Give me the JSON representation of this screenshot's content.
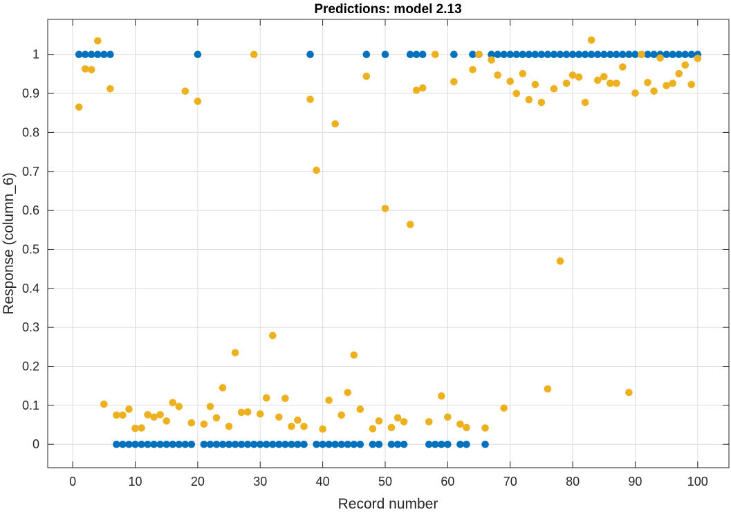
{
  "chart_data": {
    "type": "scatter",
    "title": "Predictions: model 2.13",
    "xlabel": "Record number",
    "ylabel": "Response (column_6)",
    "xlim": [
      -4,
      105
    ],
    "ylim": [
      -0.06,
      1.09
    ],
    "xticks": [
      0,
      10,
      20,
      30,
      40,
      50,
      60,
      70,
      80,
      90,
      100
    ],
    "yticks": [
      0,
      0.1,
      0.2,
      0.3,
      0.4,
      0.5,
      0.6,
      0.7,
      0.8,
      0.9,
      1
    ],
    "xtick_labels": [
      "0",
      "10",
      "20",
      "30",
      "40",
      "50",
      "60",
      "70",
      "80",
      "90",
      "100"
    ],
    "ytick_labels": [
      "0",
      "0.1",
      "0.2",
      "0.3",
      "0.4",
      "0.5",
      "0.6",
      "0.7",
      "0.8",
      "0.9",
      "1"
    ],
    "grid": true,
    "series": [
      {
        "color": "#0072BD",
        "x": [
          1,
          2,
          3,
          4,
          5,
          6,
          7,
          8,
          9,
          10,
          11,
          12,
          13,
          14,
          15,
          16,
          17,
          18,
          19,
          20,
          21,
          22,
          23,
          24,
          25,
          26,
          27,
          28,
          29,
          30,
          31,
          32,
          33,
          34,
          35,
          36,
          37,
          38,
          39,
          40,
          41,
          42,
          43,
          44,
          45,
          46,
          47,
          48,
          49,
          50,
          51,
          52,
          53,
          54,
          55,
          56,
          57,
          58,
          59,
          60,
          61,
          62,
          63,
          64,
          65,
          66,
          67,
          68,
          69,
          70,
          71,
          72,
          73,
          74,
          75,
          76,
          77,
          78,
          79,
          80,
          81,
          82,
          83,
          84,
          85,
          86,
          87,
          88,
          89,
          90,
          91,
          92,
          93,
          94,
          95,
          96,
          97,
          98,
          99,
          100
        ],
        "y": [
          1,
          1,
          1,
          1,
          1,
          1,
          0,
          0,
          0,
          0,
          0,
          0,
          0,
          0,
          0,
          0,
          0,
          0,
          0,
          1,
          0,
          0,
          0,
          0,
          0,
          0,
          0,
          0,
          0,
          0,
          0,
          0,
          0,
          0,
          0,
          0,
          0,
          1,
          0,
          0,
          0,
          0,
          0,
          0,
          0,
          0,
          1,
          0,
          0,
          1,
          0,
          0,
          0,
          1,
          1,
          1,
          0,
          0,
          0,
          0,
          1,
          0,
          0,
          1,
          1,
          0,
          1,
          1,
          1,
          1,
          1,
          1,
          1,
          1,
          1,
          1,
          1,
          1,
          1,
          1,
          1,
          1,
          1,
          1,
          1,
          1,
          1,
          1,
          1,
          1,
          1,
          1,
          1,
          1,
          1,
          1,
          1,
          1,
          1,
          1
        ]
      },
      {
        "color": "#EDB120",
        "x": [
          1,
          2,
          3,
          4,
          5,
          6,
          7,
          8,
          9,
          10,
          11,
          12,
          13,
          14,
          15,
          16,
          17,
          18,
          19,
          20,
          21,
          22,
          23,
          24,
          25,
          26,
          27,
          28,
          29,
          30,
          31,
          32,
          33,
          34,
          35,
          36,
          37,
          38,
          39,
          40,
          41,
          42,
          43,
          44,
          45,
          46,
          47,
          48,
          49,
          50,
          51,
          52,
          53,
          54,
          55,
          56,
          57,
          58,
          59,
          60,
          61,
          62,
          63,
          64,
          65,
          66,
          67,
          68,
          69,
          70,
          71,
          72,
          73,
          74,
          75,
          76,
          77,
          78,
          79,
          80,
          81,
          82,
          83,
          84,
          85,
          86,
          87,
          88,
          89,
          90,
          91,
          92,
          93,
          94,
          95,
          96,
          97,
          98,
          99,
          100
        ],
        "y": [
          0.865,
          0.963,
          0.961,
          1.035,
          0.103,
          0.912,
          0.075,
          0.075,
          0.09,
          0.041,
          0.042,
          0.076,
          0.07,
          0.076,
          0.06,
          0.107,
          0.097,
          0.906,
          0.055,
          0.88,
          0.052,
          0.097,
          0.068,
          0.145,
          0.046,
          0.235,
          0.082,
          0.083,
          1.0,
          0.078,
          0.119,
          0.279,
          0.07,
          0.118,
          0.046,
          0.062,
          0.046,
          0.885,
          0.703,
          0.039,
          0.113,
          0.822,
          0.075,
          0.133,
          0.229,
          0.09,
          0.944,
          0.04,
          0.06,
          0.605,
          0.043,
          0.068,
          0.058,
          0.564,
          0.908,
          0.914,
          0.058,
          1.0,
          0.124,
          0.07,
          0.93,
          0.052,
          0.043,
          0.961,
          1.0,
          0.042,
          0.986,
          0.947,
          0.093,
          0.931,
          0.9,
          0.951,
          0.884,
          0.923,
          0.877,
          0.142,
          0.912,
          0.47,
          0.926,
          0.947,
          0.942,
          0.877,
          1.037,
          0.934,
          0.943,
          0.926,
          0.926,
          0.968,
          0.133,
          0.901,
          1.0,
          0.928,
          0.906,
          0.991,
          0.92,
          0.926,
          0.951,
          0.973,
          0.923,
          0.99
        ]
      }
    ]
  }
}
